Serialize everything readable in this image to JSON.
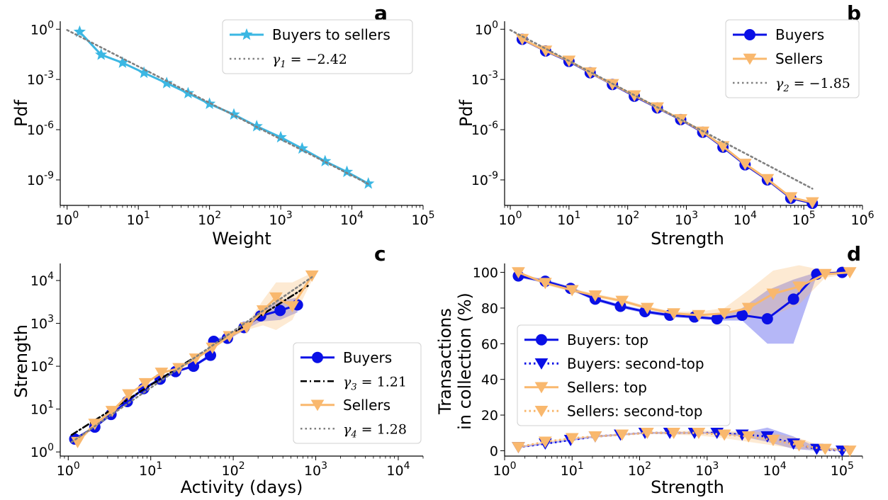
{
  "chart_data": [
    {
      "panel": "a",
      "type": "line",
      "log_x": true,
      "log_y": true,
      "xlabel": "Weight",
      "ylabel": "Pdf",
      "xlim": [
        0.8,
        100000
      ],
      "ylim": [
        3e-11,
        3
      ],
      "xticks": [
        {
          "v": 1,
          "b": "10",
          "e": "0"
        },
        {
          "v": 10,
          "b": "10",
          "e": "1"
        },
        {
          "v": 100,
          "b": "10",
          "e": "2"
        },
        {
          "v": 1000,
          "b": "10",
          "e": "3"
        },
        {
          "v": 10000,
          "b": "10",
          "e": "4"
        },
        {
          "v": 100000,
          "b": "10",
          "e": "5"
        }
      ],
      "yticks": [
        {
          "v": 1,
          "b": "10",
          "e": "0"
        },
        {
          "v": 0.001,
          "b": "10",
          "e": "-3"
        },
        {
          "v": 1e-06,
          "b": "10",
          "e": "-6"
        },
        {
          "v": 1e-09,
          "b": "10",
          "e": "-9"
        }
      ],
      "legend_position": "top-right",
      "series": [
        {
          "name": "Buyers to sellers",
          "color": "#3bb7e3",
          "marker": "star",
          "dash": "solid",
          "x": [
            1.5,
            3,
            6,
            12,
            25,
            50,
            100,
            220,
            460,
            1000,
            2000,
            4200,
            8500,
            17000
          ],
          "y": [
            0.7,
            0.03,
            0.01,
            0.0025,
            0.0006,
            0.00015,
            3.5e-05,
            8e-06,
            1.6e-06,
            3.5e-07,
            7.5e-08,
            1.3e-08,
            3e-09,
            6e-10
          ]
        },
        {
          "name": "γ1 = −2.42",
          "color": "#808080",
          "marker": "none",
          "dash": "dotted",
          "x": [
            1,
            18000
          ],
          "y": [
            0.9,
            5e-10
          ]
        }
      ]
    },
    {
      "panel": "b",
      "type": "line",
      "log_x": true,
      "log_y": true,
      "xlabel": "Strength",
      "ylabel": "Pdf",
      "xlim": [
        0.8,
        1000000
      ],
      "ylim": [
        3e-11,
        3
      ],
      "xticks": [
        {
          "v": 1,
          "b": "10",
          "e": "0"
        },
        {
          "v": 10,
          "b": "10",
          "e": "1"
        },
        {
          "v": 100,
          "b": "10",
          "e": "2"
        },
        {
          "v": 1000,
          "b": "10",
          "e": "3"
        },
        {
          "v": 10000,
          "b": "10",
          "e": "4"
        },
        {
          "v": 100000,
          "b": "10",
          "e": "5"
        },
        {
          "v": 1000000,
          "b": "10",
          "e": "6"
        }
      ],
      "yticks": [
        {
          "v": 1,
          "b": "10",
          "e": "0"
        },
        {
          "v": 0.001,
          "b": "10",
          "e": "-3"
        },
        {
          "v": 1e-06,
          "b": "10",
          "e": "-6"
        },
        {
          "v": 1e-09,
          "b": "10",
          "e": "-9"
        }
      ],
      "legend_position": "top-right",
      "series": [
        {
          "name": "Buyers",
          "color": "#0a10e6",
          "marker": "circle",
          "dash": "solid",
          "x": [
            1.6,
            4,
            10,
            23,
            55,
            130,
            320,
            800,
            1900,
            4200,
            10000,
            24000,
            60000,
            140000
          ],
          "y": [
            0.25,
            0.05,
            0.012,
            0.0025,
            0.0005,
            0.0001,
            2e-05,
            4e-06,
            7e-07,
            9e-08,
            8e-09,
            1e-09,
            8e-11,
            4e-11
          ]
        },
        {
          "name": "Sellers",
          "color": "#f9b86e",
          "marker": "tri_down",
          "dash": "solid",
          "x": [
            1.6,
            4,
            10,
            23,
            55,
            130,
            320,
            800,
            1900,
            4200,
            10000,
            24000,
            60000,
            140000
          ],
          "y": [
            0.26,
            0.052,
            0.013,
            0.0026,
            0.00052,
            0.00011,
            2.1e-05,
            4.2e-06,
            7.5e-07,
            1e-07,
            9e-09,
            1.1e-09,
            9e-11,
            4.5e-11
          ]
        },
        {
          "name": "γ2 = −1.85",
          "color": "#808080",
          "marker": "none",
          "dash": "dotted",
          "x": [
            1,
            140000
          ],
          "y": [
            0.9,
            3e-10
          ]
        }
      ]
    },
    {
      "panel": "c",
      "type": "line",
      "log_x": true,
      "log_y": true,
      "xlabel": "Activity (days)",
      "ylabel": "Strength",
      "xlim": [
        0.8,
        20000
      ],
      "ylim": [
        0.8,
        25000
      ],
      "xticks": [
        {
          "v": 1,
          "b": "10",
          "e": "0"
        },
        {
          "v": 10,
          "b": "10",
          "e": "1"
        },
        {
          "v": 100,
          "b": "10",
          "e": "2"
        },
        {
          "v": 1000,
          "b": "10",
          "e": "3"
        },
        {
          "v": 10000,
          "b": "10",
          "e": "4"
        }
      ],
      "yticks": [
        {
          "v": 1,
          "b": "10",
          "e": "0"
        },
        {
          "v": 10,
          "b": "10",
          "e": "1"
        },
        {
          "v": 100,
          "b": "10",
          "e": "2"
        },
        {
          "v": 1000,
          "b": "10",
          "e": "3"
        },
        {
          "v": 10000,
          "b": "10",
          "e": "4"
        }
      ],
      "legend_position": "lower-right",
      "series": [
        {
          "name": "Buyers",
          "color": "#0a10e6",
          "marker": "circle",
          "dash": "solid",
          "x": [
            1.2,
            2.1,
            3.3,
            5.2,
            8.2,
            13,
            20,
            33,
            53,
            58,
            85,
            135,
            215,
            370,
            600
          ],
          "y": [
            2,
            3.8,
            7.5,
            15,
            30,
            50,
            75,
            100,
            180,
            380,
            450,
            800,
            1500,
            2000,
            2700
          ],
          "band_lo": [
            1.9,
            3.6,
            7,
            14,
            28,
            47,
            70,
            95,
            160,
            330,
            400,
            700,
            1100,
            1200,
            1800
          ],
          "band_hi": [
            2.1,
            4,
            8,
            16,
            32,
            53,
            80,
            108,
            200,
            430,
            520,
            900,
            2100,
            3400,
            4000
          ]
        },
        {
          "name": "γ3 = 1.21",
          "color": "#000000",
          "marker": "none",
          "dash": "dashdot",
          "x": [
            1.1,
            800
          ],
          "y": [
            2.5,
            7500
          ]
        },
        {
          "name": "Sellers",
          "color": "#f9b86e",
          "marker": "tri_down",
          "dash": "solid",
          "x": [
            1.3,
            2.1,
            3.4,
            5.4,
            8.6,
            13.5,
            22,
            35,
            56,
            90,
            145,
            230,
            330,
            520,
            900
          ],
          "y": [
            1.7,
            4.5,
            9,
            22,
            40,
            70,
            90,
            150,
            270,
            500,
            800,
            2000,
            4000,
            2500,
            13000
          ],
          "band_lo": [
            1.6,
            4.2,
            8.5,
            20,
            37,
            65,
            85,
            140,
            250,
            450,
            700,
            900,
            700,
            1200,
            10000
          ],
          "band_hi": [
            1.8,
            4.8,
            9.5,
            24,
            43,
            75,
            95,
            160,
            290,
            560,
            950,
            3500,
            9000,
            9000,
            15000
          ]
        },
        {
          "name": "γ4 = 1.28",
          "color": "#808080",
          "marker": "none",
          "dash": "dotted",
          "x": [
            1.1,
            900
          ],
          "y": [
            1.7,
            12000
          ]
        }
      ]
    },
    {
      "panel": "d",
      "type": "line",
      "log_x": true,
      "log_y": false,
      "xlabel": "Strength",
      "ylabel": "Transactions\nin collection (%)",
      "xlim": [
        1,
        200000
      ],
      "ylim": [
        -3,
        105
      ],
      "xticks": [
        {
          "v": 1,
          "b": "10",
          "e": "0"
        },
        {
          "v": 10,
          "b": "10",
          "e": "1"
        },
        {
          "v": 100,
          "b": "10",
          "e": "2"
        },
        {
          "v": 1000,
          "b": "10",
          "e": "3"
        },
        {
          "v": 10000,
          "b": "10",
          "e": "4"
        },
        {
          "v": 100000,
          "b": "10",
          "e": "5"
        }
      ],
      "yticks": [
        {
          "v": 0,
          "t": "0"
        },
        {
          "v": 20,
          "t": "20"
        },
        {
          "v": 40,
          "t": "40"
        },
        {
          "v": 60,
          "t": "60"
        },
        {
          "v": 80,
          "t": "80"
        },
        {
          "v": 100,
          "t": "100"
        }
      ],
      "legend_position": "center-left",
      "series": [
        {
          "name": "Buyers: top",
          "color": "#0a10e6",
          "marker": "circle",
          "dash": "solid",
          "x": [
            1.6,
            4,
            9.5,
            22,
            52,
            120,
            280,
            650,
            1400,
            3300,
            7800,
            19000,
            42000,
            100000
          ],
          "y": [
            98,
            95,
            91,
            85,
            81,
            78,
            76,
            75,
            74,
            76,
            74,
            85,
            99,
            100
          ],
          "band_lo": [
            97,
            94,
            90,
            84,
            80,
            77,
            75,
            74,
            73,
            73,
            60,
            60,
            98,
            99
          ],
          "band_hi": [
            99,
            96,
            92,
            86,
            82,
            79,
            77,
            76,
            75,
            80,
            90,
            96,
            100,
            100
          ]
        },
        {
          "name": "Buyers: second-top",
          "color": "#0a10e6",
          "marker": "tri_down",
          "dash": "dotted",
          "x": [
            1.6,
            4,
            9.5,
            22,
            52,
            120,
            280,
            650,
            1400,
            3300,
            7800,
            19000,
            42000,
            100000
          ],
          "y": [
            2,
            4,
            6,
            8,
            9,
            10,
            10,
            10,
            10,
            9,
            8,
            4,
            1,
            0
          ],
          "band_lo": [
            1.5,
            3.5,
            5.5,
            7.5,
            8.5,
            9.5,
            9.5,
            9.5,
            9.5,
            8,
            5,
            1,
            0,
            0
          ],
          "band_hi": [
            2.5,
            4.5,
            6.5,
            8.5,
            9.5,
            10.5,
            10.5,
            10.5,
            10.5,
            10,
            13,
            8,
            2,
            1
          ]
        },
        {
          "name": "Sellers: top",
          "color": "#f9b86e",
          "marker": "tri_down",
          "dash": "solid",
          "x": [
            1.6,
            4,
            10,
            22,
            55,
            130,
            320,
            750,
            1800,
            4100,
            9500,
            23000,
            56000,
            130000
          ],
          "y": [
            100,
            94,
            90,
            87,
            84,
            80,
            77,
            76,
            77,
            80,
            88,
            92,
            99,
            100
          ],
          "band_lo": [
            99,
            93,
            89,
            86,
            83,
            79,
            76,
            74,
            74,
            74,
            76,
            82,
            97,
            99
          ],
          "band_hi": [
            100,
            95,
            91,
            88,
            85,
            81,
            78,
            78,
            80,
            90,
            101,
            104,
            101,
            101
          ]
        },
        {
          "name": "Sellers: second-top",
          "color": "#f9b86e",
          "marker": "tri_down",
          "dash": "dotted",
          "x": [
            1.6,
            4,
            10,
            22,
            55,
            130,
            320,
            750,
            1800,
            4100,
            9500,
            23000,
            56000,
            130000
          ],
          "y": [
            2,
            5,
            7,
            8,
            9,
            10,
            10,
            10,
            9,
            8,
            6,
            3,
            1,
            0
          ],
          "band_lo": [
            1.5,
            4.5,
            6.5,
            7.5,
            8.5,
            9.5,
            9,
            8.5,
            7,
            5,
            3,
            1,
            0,
            0
          ],
          "band_hi": [
            2.5,
            5.5,
            7.5,
            8.5,
            9.5,
            10.5,
            11,
            11.5,
            11,
            11,
            10,
            7,
            2,
            1
          ]
        }
      ]
    }
  ]
}
